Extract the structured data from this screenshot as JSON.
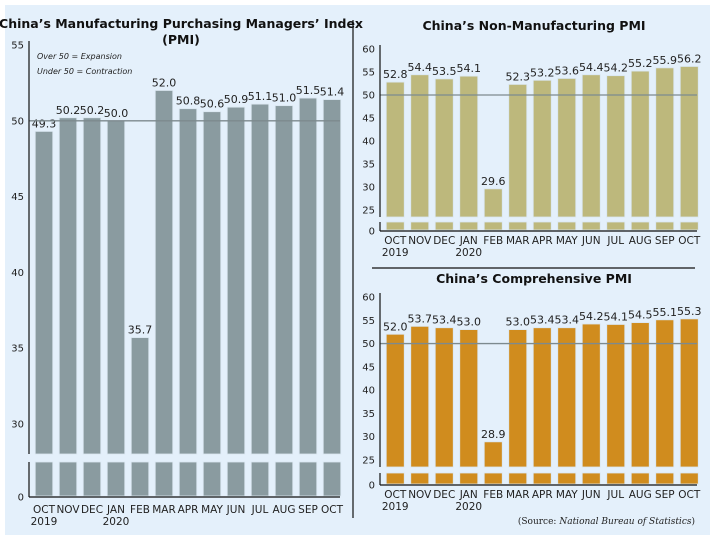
{
  "chart_data": [
    {
      "type": "bar",
      "title": "China’s Manufacturing Purchasing Managers’ Index (PMI)",
      "title_lines": [
        "China’s Manufacturing Purchasing Managers’ Index",
        "(PMI)"
      ],
      "annotations": [
        "Over 50 = Expansion",
        "Under 50 = Contraction"
      ],
      "categories": [
        "OCT",
        "NOV",
        "DEC",
        "JAN",
        "FEB",
        "MAR",
        "APR",
        "MAY",
        "JUN",
        "JUL",
        "AUG",
        "SEP",
        "OCT"
      ],
      "category_sublabels": [
        "2019",
        "",
        "",
        "2020",
        "",
        "",
        "",
        "",
        "",
        "",
        "",
        "",
        ""
      ],
      "values": [
        49.3,
        50.2,
        50.2,
        50.0,
        35.7,
        52.0,
        50.8,
        50.6,
        50.9,
        51.1,
        51.0,
        51.5,
        51.4
      ],
      "value_labels": [
        "49.3",
        "50.2",
        "50.2",
        "50.0",
        "35.7",
        "52.0",
        "50.8",
        "50.6",
        "50.9",
        "51.1",
        "51.0",
        "51.5",
        "51.4"
      ],
      "yticks": [
        0,
        30,
        35,
        40,
        45,
        50,
        55
      ],
      "ylim": [
        0,
        55
      ],
      "axis_break": "between 0 and 30",
      "reference_line": 50,
      "color": "#8a9ba0",
      "xlabel": "",
      "ylabel": "",
      "grid": false
    },
    {
      "type": "bar",
      "title": "China’s Non-Manufacturing PMI",
      "categories": [
        "OCT",
        "NOV",
        "DEC",
        "JAN",
        "FEB",
        "MAR",
        "APR",
        "MAY",
        "JUN",
        "JUL",
        "AUG",
        "SEP",
        "OCT"
      ],
      "category_sublabels": [
        "2019",
        "",
        "",
        "2020",
        "",
        "",
        "",
        "",
        "",
        "",
        "",
        "",
        ""
      ],
      "values": [
        52.8,
        54.4,
        53.5,
        54.1,
        29.6,
        52.3,
        53.2,
        53.6,
        54.4,
        54.2,
        55.2,
        55.9,
        56.2
      ],
      "value_labels": [
        "52.8",
        "54.4",
        "53.5",
        "54.1",
        "29.6",
        "52.3",
        "53.2",
        "53.6",
        "54.4",
        "54.2",
        "55.2",
        "55.9",
        "56.2"
      ],
      "yticks": [
        0,
        25,
        30,
        35,
        40,
        45,
        50,
        55,
        60
      ],
      "ylim": [
        0,
        60
      ],
      "axis_break": "between 0 and 25",
      "reference_line": 50,
      "color": "#bdb87c",
      "xlabel": "",
      "ylabel": "",
      "grid": false
    },
    {
      "type": "bar",
      "title": "China’s Comprehensive PMI",
      "categories": [
        "OCT",
        "NOV",
        "DEC",
        "JAN",
        "FEB",
        "MAR",
        "APR",
        "MAY",
        "JUN",
        "JUL",
        "AUG",
        "SEP",
        "OCT"
      ],
      "category_sublabels": [
        "2019",
        "",
        "",
        "2020",
        "",
        "",
        "",
        "",
        "",
        "",
        "",
        "",
        ""
      ],
      "values": [
        52.0,
        53.7,
        53.4,
        53.0,
        28.9,
        53.0,
        53.4,
        53.4,
        54.2,
        54.1,
        54.5,
        55.1,
        55.3
      ],
      "value_labels": [
        "52.0",
        "53.7",
        "53.4",
        "53.0",
        "28.9",
        "53.0",
        "53.4",
        "53.4",
        "54.2",
        "54.1",
        "54.5",
        "55.1",
        "55.3"
      ],
      "yticks": [
        0,
        25,
        30,
        35,
        40,
        45,
        50,
        55,
        60
      ],
      "ylim": [
        0,
        60
      ],
      "axis_break": "between 0 and 25",
      "reference_line": 50,
      "color": "#d08c1e",
      "xlabel": "",
      "ylabel": "",
      "grid": false
    }
  ],
  "source": {
    "prefix": "(Source: ",
    "name": "National Bureau of Statistics",
    "suffix": ")"
  }
}
